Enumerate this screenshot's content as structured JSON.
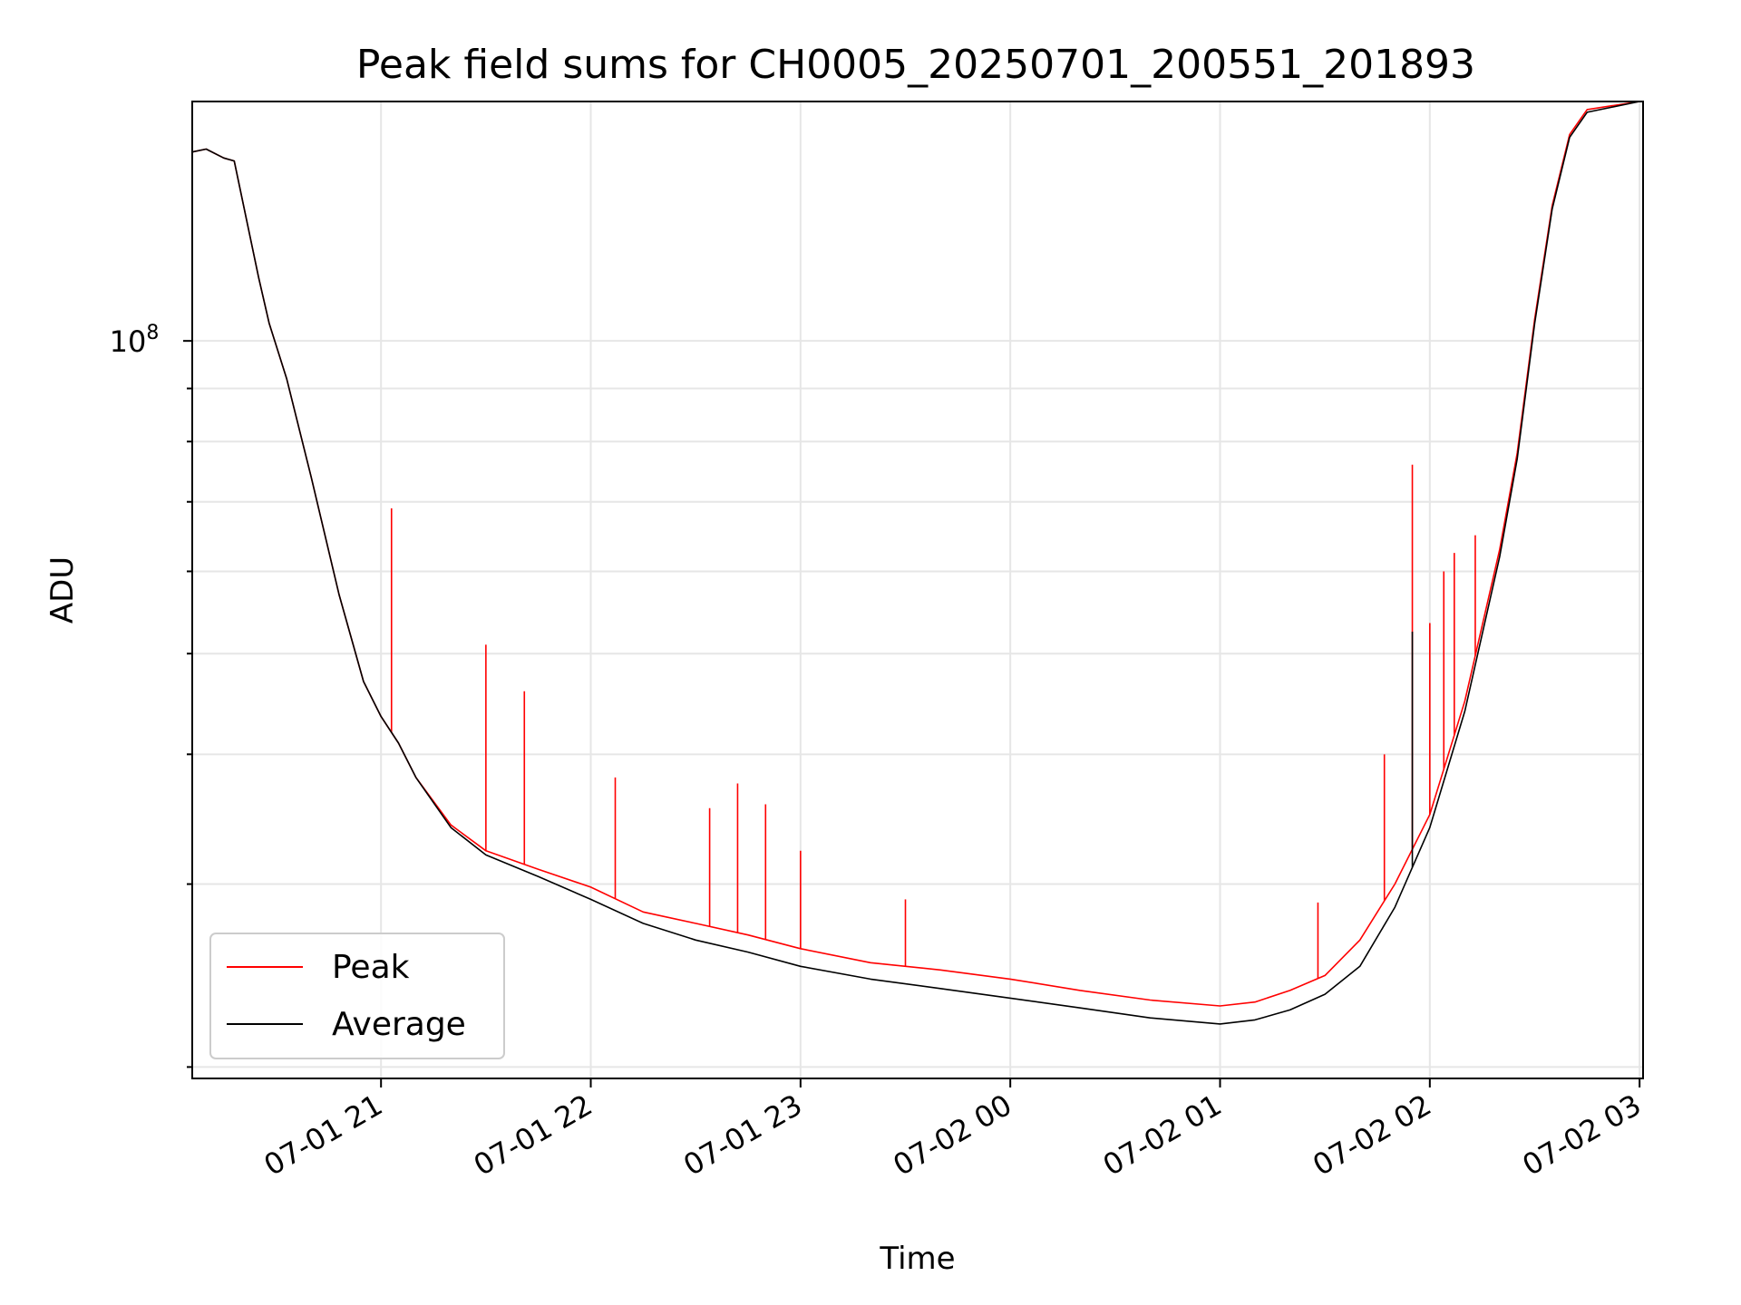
{
  "chart_data": {
    "type": "line",
    "title": "Peak field sums for CH0005_20250701_200551_201893",
    "xlabel": "Time",
    "ylabel": "ADU",
    "yscale": "log",
    "ylim": [
      19500000,
      170000000
    ],
    "xlim": [
      "2025-07-01 20:06",
      "2025-07-02 03:01"
    ],
    "x_ticks": [
      {
        "value": "2025-07-01 21:00",
        "label": "07-01 21"
      },
      {
        "value": "2025-07-01 22:00",
        "label": "07-01 22"
      },
      {
        "value": "2025-07-01 23:00",
        "label": "07-01 23"
      },
      {
        "value": "2025-07-02 00:00",
        "label": "07-02 00"
      },
      {
        "value": "2025-07-02 01:00",
        "label": "07-02 01"
      },
      {
        "value": "2025-07-02 02:00",
        "label": "07-02 02"
      },
      {
        "value": "2025-07-02 03:00",
        "label": "07-02 03"
      }
    ],
    "y_ticks": [
      {
        "value": 100000000,
        "base": "10",
        "exp": "8"
      }
    ],
    "grid": true,
    "legend_position": "lower-left",
    "series": [
      {
        "name": "Peak",
        "color": "#ff0000",
        "points": [
          [
            "2025-07-01 20:06",
            152000000
          ],
          [
            "2025-07-01 20:10",
            153000000
          ],
          [
            "2025-07-01 20:15",
            150000000
          ],
          [
            "2025-07-01 20:18",
            149000000
          ],
          [
            "2025-07-01 20:25",
            115000000
          ],
          [
            "2025-07-01 20:28",
            104000000
          ],
          [
            "2025-07-01 20:33",
            92000000
          ],
          [
            "2025-07-01 20:40",
            74000000
          ],
          [
            "2025-07-01 20:48",
            57000000
          ],
          [
            "2025-07-01 20:55",
            47000000
          ],
          [
            "2025-07-01 21:00",
            43500000
          ],
          [
            "2025-07-01 21:05",
            41000000
          ],
          [
            "2025-07-01 21:10",
            38000000
          ],
          [
            "2025-07-01 21:20",
            34200000
          ],
          [
            "2025-07-01 21:30",
            32300000
          ],
          [
            "2025-07-01 21:45",
            31000000
          ],
          [
            "2025-07-01 22:00",
            29800000
          ],
          [
            "2025-07-01 22:15",
            28200000
          ],
          [
            "2025-07-01 22:30",
            27500000
          ],
          [
            "2025-07-01 22:45",
            26800000
          ],
          [
            "2025-07-01 23:00",
            26000000
          ],
          [
            "2025-07-01 23:20",
            25200000
          ],
          [
            "2025-07-01 23:40",
            24800000
          ],
          [
            "2025-07-02 00:00",
            24300000
          ],
          [
            "2025-07-02 00:20",
            23700000
          ],
          [
            "2025-07-02 00:40",
            23200000
          ],
          [
            "2025-07-02 01:00",
            22900000
          ],
          [
            "2025-07-02 01:10",
            23100000
          ],
          [
            "2025-07-02 01:20",
            23700000
          ],
          [
            "2025-07-02 01:30",
            24500000
          ],
          [
            "2025-07-02 01:40",
            26500000
          ],
          [
            "2025-07-02 01:50",
            30000000
          ],
          [
            "2025-07-02 02:00",
            35000000
          ],
          [
            "2025-07-02 02:10",
            45000000
          ],
          [
            "2025-07-02 02:20",
            63000000
          ],
          [
            "2025-07-02 02:25",
            78000000
          ],
          [
            "2025-07-02 02:30",
            105000000
          ],
          [
            "2025-07-02 02:35",
            135000000
          ],
          [
            "2025-07-02 02:40",
            158000000
          ],
          [
            "2025-07-02 02:45",
            167000000
          ],
          [
            "2025-07-02 03:00",
            170000000
          ]
        ],
        "spikes": [
          [
            "2025-07-01 21:03",
            69000000
          ],
          [
            "2025-07-01 21:30",
            51000000
          ],
          [
            "2025-07-01 21:41",
            46000000
          ],
          [
            "2025-07-01 22:07",
            38000000
          ],
          [
            "2025-07-01 22:34",
            35500000
          ],
          [
            "2025-07-01 22:42",
            37500000
          ],
          [
            "2025-07-01 22:50",
            35800000
          ],
          [
            "2025-07-01 23:00",
            32300000
          ],
          [
            "2025-07-01 23:30",
            29000000
          ],
          [
            "2025-07-02 01:28",
            28800000
          ],
          [
            "2025-07-02 01:47",
            40000000
          ],
          [
            "2025-07-02 01:55",
            76000000
          ],
          [
            "2025-07-02 02:00",
            53500000
          ],
          [
            "2025-07-02 02:04",
            60000000
          ],
          [
            "2025-07-02 02:07",
            62500000
          ],
          [
            "2025-07-02 02:13",
            65000000
          ]
        ]
      },
      {
        "name": "Average",
        "color": "#000000",
        "points": [
          [
            "2025-07-01 20:06",
            152000000
          ],
          [
            "2025-07-01 20:10",
            153000000
          ],
          [
            "2025-07-01 20:15",
            150000000
          ],
          [
            "2025-07-01 20:18",
            149000000
          ],
          [
            "2025-07-01 20:25",
            115000000
          ],
          [
            "2025-07-01 20:28",
            104000000
          ],
          [
            "2025-07-01 20:33",
            92000000
          ],
          [
            "2025-07-01 20:40",
            74000000
          ],
          [
            "2025-07-01 20:48",
            57000000
          ],
          [
            "2025-07-01 20:55",
            47000000
          ],
          [
            "2025-07-01 21:00",
            43500000
          ],
          [
            "2025-07-01 21:05",
            41000000
          ],
          [
            "2025-07-01 21:10",
            38000000
          ],
          [
            "2025-07-01 21:20",
            34000000
          ],
          [
            "2025-07-01 21:30",
            32000000
          ],
          [
            "2025-07-01 21:45",
            30500000
          ],
          [
            "2025-07-01 22:00",
            29000000
          ],
          [
            "2025-07-01 22:15",
            27500000
          ],
          [
            "2025-07-01 22:30",
            26500000
          ],
          [
            "2025-07-01 22:45",
            25800000
          ],
          [
            "2025-07-01 23:00",
            25000000
          ],
          [
            "2025-07-01 23:20",
            24300000
          ],
          [
            "2025-07-01 23:40",
            23800000
          ],
          [
            "2025-07-02 00:00",
            23300000
          ],
          [
            "2025-07-02 00:20",
            22800000
          ],
          [
            "2025-07-02 00:40",
            22300000
          ],
          [
            "2025-07-02 01:00",
            22000000
          ],
          [
            "2025-07-02 01:10",
            22200000
          ],
          [
            "2025-07-02 01:20",
            22700000
          ],
          [
            "2025-07-02 01:30",
            23500000
          ],
          [
            "2025-07-02 01:40",
            25000000
          ],
          [
            "2025-07-02 01:50",
            28500000
          ],
          [
            "2025-07-02 02:00",
            34000000
          ],
          [
            "2025-07-02 02:10",
            44000000
          ],
          [
            "2025-07-02 02:20",
            62000000
          ],
          [
            "2025-07-02 02:25",
            77000000
          ],
          [
            "2025-07-02 02:30",
            104000000
          ],
          [
            "2025-07-02 02:35",
            134000000
          ],
          [
            "2025-07-02 02:40",
            157000000
          ],
          [
            "2025-07-02 02:45",
            166000000
          ],
          [
            "2025-07-02 03:00",
            170000000
          ]
        ],
        "spikes": [
          [
            "2025-07-02 01:55",
            52500000
          ]
        ]
      }
    ]
  }
}
